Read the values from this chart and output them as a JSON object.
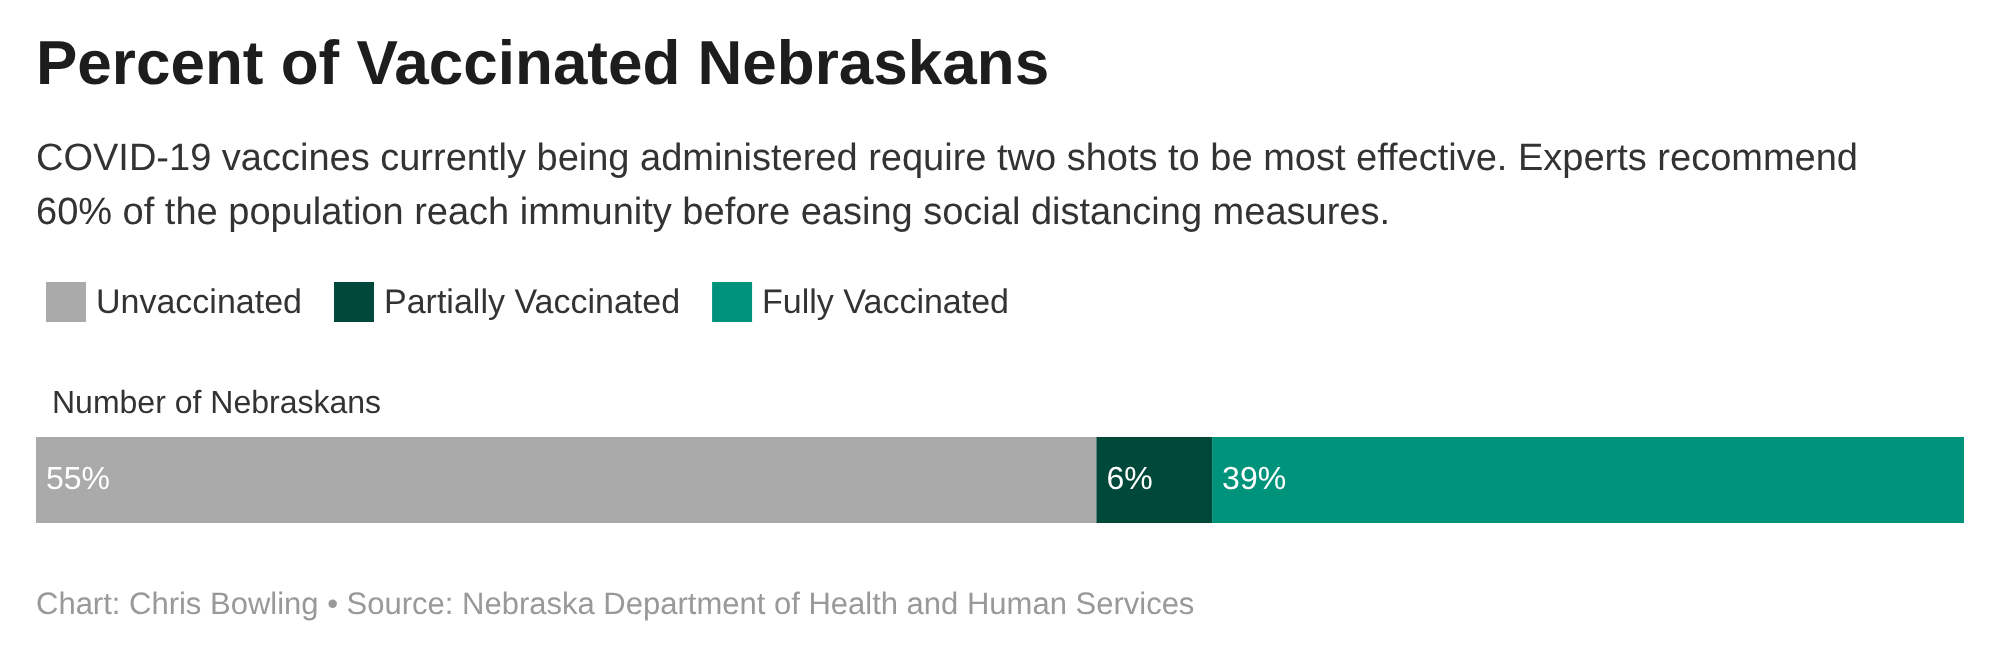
{
  "chart_data": {
    "type": "bar",
    "orientation": "horizontal",
    "stacked": true,
    "title": "Percent of Vaccinated Nebraskans",
    "subtitle": "COVID-19 vaccines currently being administered require two shots to be most effective. Experts recommend 60% of the population reach immunity before easing social distancing measures.",
    "categories": [
      "Number of Nebraskans"
    ],
    "series": [
      {
        "name": "Unvaccinated",
        "color": "#aaaaaa",
        "values": [
          55
        ],
        "value_labels": [
          "55%"
        ]
      },
      {
        "name": "Partially Vaccinated",
        "color": "#00483a",
        "values": [
          6
        ],
        "value_labels": [
          "6%"
        ]
      },
      {
        "name": "Fully Vaccinated",
        "color": "#00937b",
        "values": [
          39
        ],
        "value_labels": [
          "39%"
        ]
      }
    ],
    "xlim": [
      0,
      100
    ],
    "legend": "top left",
    "annotations": [
      "Chart: Chris Bowling • Source: Nebraska Department of Health and Human Services"
    ]
  }
}
